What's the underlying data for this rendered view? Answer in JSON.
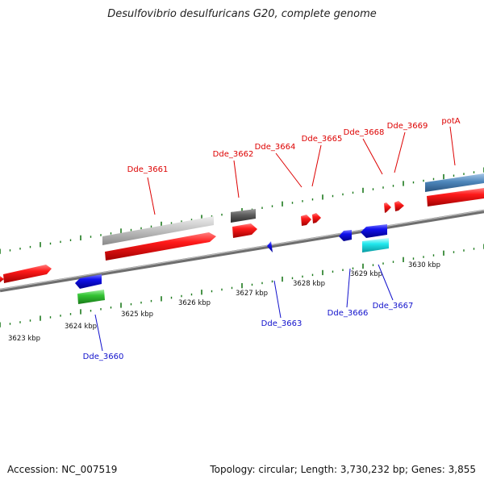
{
  "title": "Desulfovibrio desulfuricans G20, complete genome",
  "footer": {
    "accession": "Accession: NC_007519",
    "summary": "Topology: circular; Length: 3,730,232 bp; Genes: 3,855"
  },
  "colors": {
    "forward_gene": "#ff1a1a",
    "reverse_gene": "#1111ee",
    "forward_label": "#dd0000",
    "reverse_label": "#1111cc",
    "backbone": "#8a8a8a",
    "ticks": "#1c7a1c",
    "rna_green": "#33c433",
    "cyan": "#22e8ee",
    "gray_light": "#c4c4c4",
    "gray_dark": "#5c5c5c",
    "steel_blue": "#4d86bb"
  },
  "scale_labels": [
    "3623 kbp",
    "3624 kbp",
    "3625 kbp",
    "3626 kbp",
    "3627 kbp",
    "3628 kbp",
    "3629 kbp",
    "3630 kbp"
  ],
  "gene_labels_top": [
    "Dde_3661",
    "Dde_3662",
    "Dde_3664",
    "Dde_3665",
    "Dde_3668",
    "Dde_3669",
    "potA"
  ],
  "gene_labels_bottom": [
    "Dde_3660",
    "Dde_3663",
    "Dde_3666",
    "Dde_3667"
  ]
}
